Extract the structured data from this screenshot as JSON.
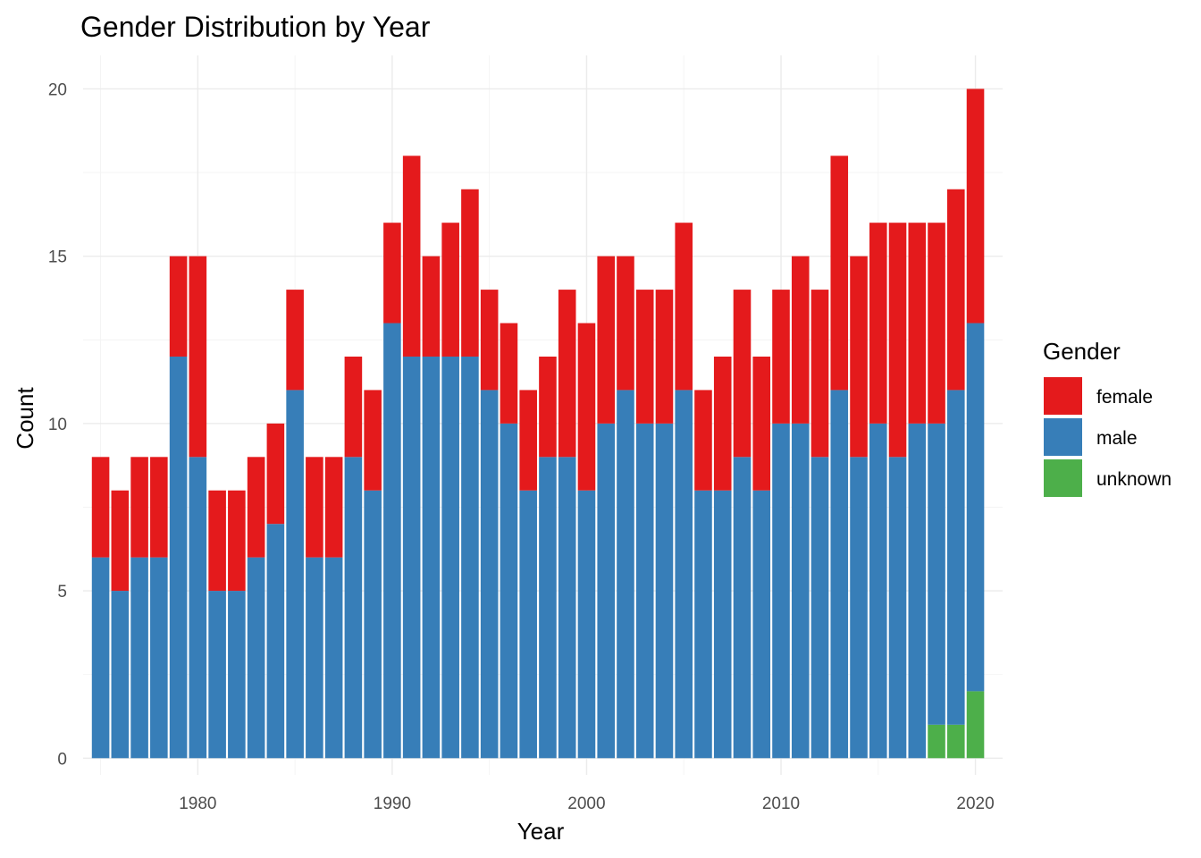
{
  "chart_data": {
    "type": "bar",
    "stacked": true,
    "title": "Gender Distribution by Year",
    "xlabel": "Year",
    "ylabel": "Count",
    "xlim": [
      1974.1,
      2021.4
    ],
    "ylim": [
      -0.5,
      21
    ],
    "x_ticks": [
      1980,
      1990,
      2000,
      2010,
      2020
    ],
    "y_ticks": [
      0,
      5,
      10,
      15,
      20
    ],
    "grid": true,
    "legend": {
      "title": "Gender",
      "position": "right"
    },
    "categories": [
      1975,
      1976,
      1977,
      1978,
      1979,
      1980,
      1981,
      1982,
      1983,
      1984,
      1985,
      1986,
      1987,
      1988,
      1989,
      1990,
      1991,
      1992,
      1993,
      1994,
      1995,
      1996,
      1997,
      1998,
      1999,
      2000,
      2001,
      2002,
      2003,
      2004,
      2005,
      2006,
      2007,
      2008,
      2009,
      2010,
      2011,
      2012,
      2013,
      2014,
      2015,
      2016,
      2017,
      2018,
      2019,
      2020
    ],
    "series": [
      {
        "name": "female",
        "color": "#e41a1c",
        "values": [
          3,
          3,
          3,
          3,
          3,
          6,
          3,
          3,
          3,
          3,
          3,
          3,
          3,
          3,
          3,
          3,
          6,
          3,
          4,
          5,
          3,
          3,
          3,
          3,
          5,
          5,
          5,
          4,
          4,
          4,
          5,
          3,
          4,
          5,
          4,
          4,
          5,
          5,
          7,
          6,
          6,
          7,
          6,
          6,
          6,
          7
        ]
      },
      {
        "name": "male",
        "color": "#377eb8",
        "values": [
          6,
          5,
          6,
          6,
          12,
          9,
          5,
          5,
          6,
          7,
          11,
          6,
          6,
          9,
          8,
          13,
          12,
          12,
          12,
          12,
          11,
          10,
          8,
          9,
          9,
          8,
          10,
          11,
          10,
          10,
          11,
          8,
          8,
          9,
          8,
          10,
          10,
          9,
          11,
          9,
          10,
          9,
          10,
          9,
          10,
          11
        ]
      },
      {
        "name": "unknown",
        "color": "#4daf4a",
        "values": [
          0,
          0,
          0,
          0,
          0,
          0,
          0,
          0,
          0,
          0,
          0,
          0,
          0,
          0,
          0,
          0,
          0,
          0,
          0,
          0,
          0,
          0,
          0,
          0,
          0,
          0,
          0,
          0,
          0,
          0,
          0,
          0,
          0,
          0,
          0,
          0,
          0,
          0,
          0,
          0,
          0,
          0,
          0,
          1,
          1,
          2
        ]
      }
    ]
  }
}
